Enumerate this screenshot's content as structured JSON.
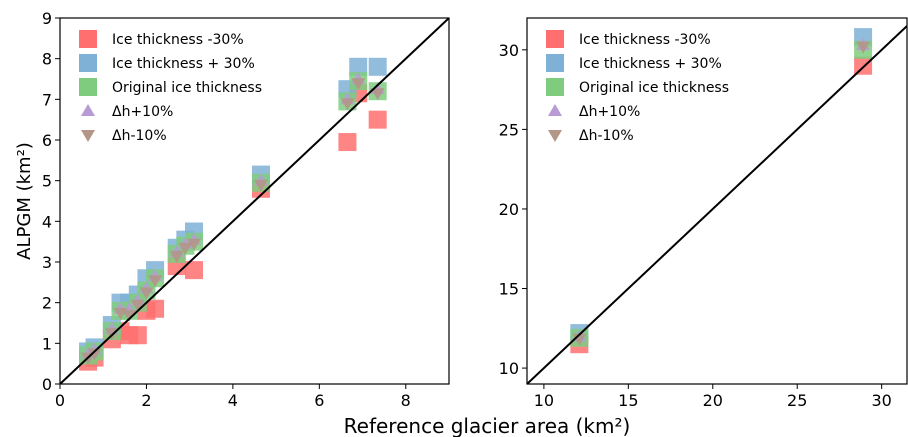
{
  "figure": {
    "xlabel": "Reference glacier area (km²)"
  },
  "legend_items": [
    {
      "key": "minus30",
      "label": "Ice thickness -30%",
      "marker": "square",
      "color": "#ff6f6f"
    },
    {
      "key": "plus30",
      "label": "Ice thickness + 30%",
      "marker": "square",
      "color": "#7fb0d6"
    },
    {
      "key": "orig",
      "label": "Original ice thickness",
      "marker": "square",
      "color": "#7fcc7f"
    },
    {
      "key": "dhplus",
      "label": "Δh+10%",
      "marker": "triangle-up",
      "color": "#b79ad6"
    },
    {
      "key": "dhminus",
      "label": "Δh-10%",
      "marker": "triangle-down",
      "color": "#b39688"
    }
  ],
  "chart_data": [
    {
      "type": "scatter",
      "ylabel": "ALPGM (km²)",
      "xlim": [
        0,
        9
      ],
      "ylim": [
        0,
        9
      ],
      "xticks": [
        "0",
        "2",
        "4",
        "6",
        "8"
      ],
      "yticks": [
        "0",
        "1",
        "2",
        "3",
        "4",
        "5",
        "6",
        "7",
        "8",
        "9"
      ],
      "reference_line": "1:1",
      "legend_position": "top-left",
      "series": [
        {
          "key": "minus30",
          "points": [
            [
              0.65,
              0.55
            ],
            [
              0.8,
              0.65
            ],
            [
              1.2,
              1.1
            ],
            [
              1.4,
              1.3
            ],
            [
              1.6,
              1.2
            ],
            [
              1.8,
              1.2
            ],
            [
              2.0,
              1.8
            ],
            [
              2.2,
              1.85
            ],
            [
              2.7,
              2.9
            ],
            [
              3.1,
              2.8
            ],
            [
              4.65,
              4.8
            ],
            [
              6.65,
              5.95
            ],
            [
              6.9,
              7.15
            ],
            [
              7.35,
              6.5
            ]
          ]
        },
        {
          "key": "plus30",
          "points": [
            [
              0.65,
              0.8
            ],
            [
              0.8,
              0.9
            ],
            [
              1.2,
              1.45
            ],
            [
              1.4,
              2.0
            ],
            [
              1.6,
              2.0
            ],
            [
              1.8,
              2.2
            ],
            [
              2.0,
              2.6
            ],
            [
              2.2,
              2.8
            ],
            [
              2.7,
              3.35
            ],
            [
              2.9,
              3.55
            ],
            [
              3.1,
              3.75
            ],
            [
              4.65,
              5.15
            ],
            [
              6.65,
              7.25
            ],
            [
              6.9,
              7.8
            ],
            [
              7.35,
              7.8
            ]
          ]
        },
        {
          "key": "orig",
          "points": [
            [
              0.65,
              0.7
            ],
            [
              0.8,
              0.8
            ],
            [
              1.2,
              1.3
            ],
            [
              1.4,
              1.8
            ],
            [
              1.6,
              1.8
            ],
            [
              1.8,
              2.0
            ],
            [
              2.0,
              2.3
            ],
            [
              2.2,
              2.6
            ],
            [
              2.7,
              3.2
            ],
            [
              2.9,
              3.4
            ],
            [
              3.1,
              3.5
            ],
            [
              4.65,
              4.95
            ],
            [
              6.65,
              6.95
            ],
            [
              6.9,
              7.45
            ],
            [
              7.35,
              7.2
            ]
          ]
        },
        {
          "key": "dhplus",
          "points": [
            [
              0.65,
              0.75
            ],
            [
              0.8,
              0.85
            ],
            [
              1.2,
              1.35
            ],
            [
              1.4,
              1.85
            ],
            [
              1.6,
              1.85
            ],
            [
              1.8,
              2.05
            ],
            [
              2.0,
              2.35
            ],
            [
              2.2,
              2.65
            ],
            [
              2.7,
              3.25
            ],
            [
              2.9,
              3.45
            ],
            [
              3.1,
              3.55
            ],
            [
              4.65,
              5.0
            ],
            [
              6.65,
              7.0
            ],
            [
              6.9,
              7.5
            ],
            [
              7.35,
              7.25
            ]
          ]
        },
        {
          "key": "dhminus",
          "points": [
            [
              0.65,
              0.65
            ],
            [
              0.8,
              0.75
            ],
            [
              1.2,
              1.25
            ],
            [
              1.4,
              1.75
            ],
            [
              1.6,
              1.7
            ],
            [
              1.8,
              1.95
            ],
            [
              2.0,
              2.25
            ],
            [
              2.2,
              2.55
            ],
            [
              2.7,
              3.15
            ],
            [
              2.9,
              3.35
            ],
            [
              3.1,
              3.45
            ],
            [
              4.65,
              4.9
            ],
            [
              6.65,
              6.9
            ],
            [
              6.9,
              7.4
            ],
            [
              7.35,
              7.15
            ]
          ]
        }
      ]
    },
    {
      "type": "scatter",
      "ylabel": "",
      "xlim": [
        9,
        31.5
      ],
      "ylim": [
        9,
        32
      ],
      "xticks": [
        "10",
        "15",
        "20",
        "25",
        "30"
      ],
      "yticks": [
        "10",
        "15",
        "20",
        "25",
        "30"
      ],
      "reference_line": "1:1",
      "legend_position": "top-left",
      "series": [
        {
          "key": "minus30",
          "points": [
            [
              12.1,
              11.5
            ],
            [
              28.9,
              29.0
            ]
          ]
        },
        {
          "key": "plus30",
          "points": [
            [
              12.1,
              12.2
            ],
            [
              28.9,
              30.8
            ]
          ]
        },
        {
          "key": "orig",
          "points": [
            [
              12.1,
              11.9
            ],
            [
              28.9,
              30.0
            ]
          ]
        },
        {
          "key": "dhplus",
          "points": [
            [
              12.1,
              12.0
            ],
            [
              28.9,
              30.3
            ]
          ]
        },
        {
          "key": "dhminus",
          "points": [
            [
              12.1,
              11.85
            ],
            [
              28.9,
              30.2
            ]
          ]
        }
      ]
    }
  ]
}
